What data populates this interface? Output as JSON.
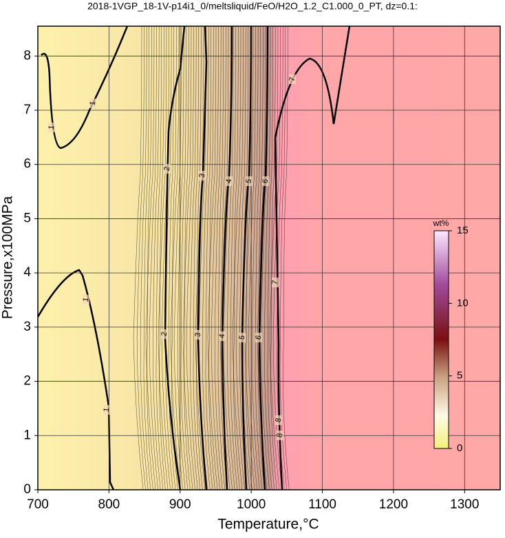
{
  "chart_data": {
    "type": "contour",
    "title": "2018-1VGP_18-1V-p14i1_0/meltsliquid/FeO/H2O_1.2_C1.000_0_PT, dz=0.1:",
    "x_label": "Temperature,°C",
    "y_label": "Pressure,x100MPa",
    "xlim": [
      700,
      1350
    ],
    "xticks": [
      700,
      800,
      900,
      1000,
      1100,
      1200,
      1300
    ],
    "ylim": [
      0,
      8.55
    ],
    "yticks": [
      0,
      1,
      2,
      3,
      4,
      5,
      6,
      7,
      8
    ],
    "grid": true,
    "contour_levels": [
      1,
      2,
      3,
      4,
      5,
      6,
      7,
      8
    ],
    "colorbar": {
      "label": "wt%",
      "lim": [
        0,
        15
      ],
      "ticks": [
        0,
        5,
        10,
        15
      ]
    }
  }
}
